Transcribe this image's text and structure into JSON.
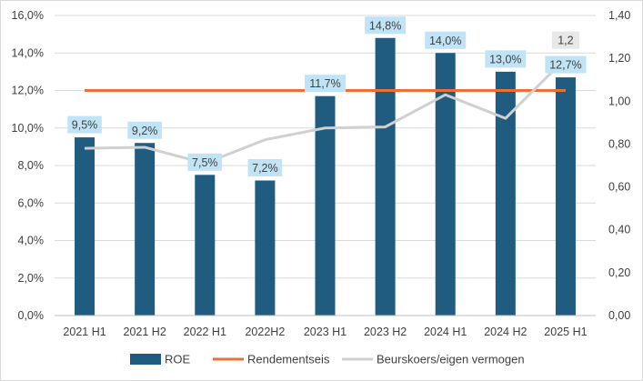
{
  "chart_data": {
    "type": "bar",
    "categories": [
      "2021 H1",
      "2021 H2",
      "2022 H1",
      "2022H2",
      "2023 H1",
      "2023 H2",
      "2024 H1",
      "2024 H2",
      "2025 H1"
    ],
    "series": [
      {
        "name": "ROE",
        "kind": "bar",
        "axis": "left",
        "color": "#1f5c7f",
        "values": [
          9.5,
          9.2,
          7.5,
          7.2,
          11.7,
          14.8,
          14.0,
          13.0,
          12.7
        ],
        "labels": [
          "9,5%",
          "9,2%",
          "7,5%",
          "7,2%",
          "11,7%",
          "14,8%",
          "14,0%",
          "13,0%",
          "12,7%"
        ]
      },
      {
        "name": "Rendementseis",
        "kind": "line",
        "axis": "left",
        "color": "#e97132",
        "values": [
          12.0,
          12.0,
          12.0,
          12.0,
          12.0,
          12.0,
          12.0,
          12.0,
          12.0
        ]
      },
      {
        "name": "Beurskoers/eigen vermogen",
        "kind": "line",
        "axis": "right",
        "color": "#d0d0d0",
        "values": [
          0.78,
          0.785,
          0.71,
          0.82,
          0.875,
          0.88,
          1.03,
          0.92,
          1.2
        ],
        "labels": [
          "",
          "",
          "",
          "",
          "",
          "",
          "",
          "",
          "1,2"
        ]
      }
    ],
    "y_left": {
      "min": 0,
      "max": 16,
      "ticks": [
        "0,0%",
        "2,0%",
        "4,0%",
        "6,0%",
        "8,0%",
        "10,0%",
        "12,0%",
        "14,0%",
        "16,0%"
      ]
    },
    "y_right": {
      "min": 0,
      "max": 1.4,
      "ticks": [
        "0,00",
        "0,20",
        "0,40",
        "0,60",
        "0,80",
        "1,00",
        "1,20",
        "1,40"
      ]
    },
    "grid": true,
    "legend_position": "bottom",
    "label_bg_bar": "#c0e4f5",
    "label_bg_line": "#e8e8e8"
  }
}
